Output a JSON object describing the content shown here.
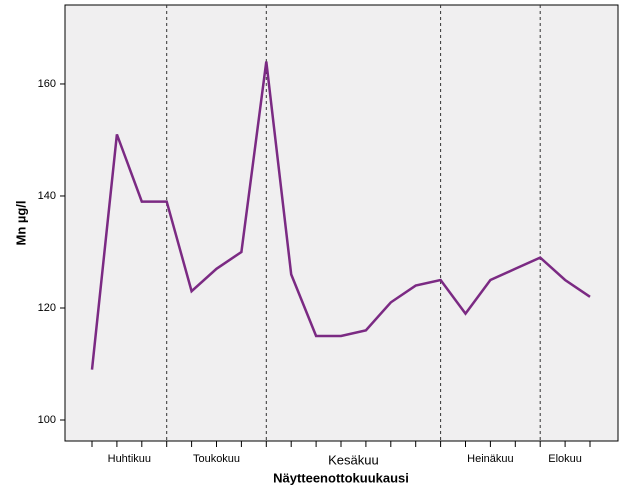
{
  "chart_data": {
    "type": "line",
    "x_label": "Näytteenottokuukausi",
    "y_label": "Mn µg/l",
    "values": [
      109,
      151,
      139,
      139,
      123,
      127,
      130,
      164,
      126,
      115,
      115,
      116,
      121,
      124,
      125,
      119,
      125,
      127,
      129,
      125,
      122
    ],
    "color": "#7b2a83",
    "month_labels": [
      "Huhtikuu",
      "Toukokuu",
      "Kesäkuu",
      "Heinäkuu",
      "Elokuu"
    ],
    "dividers": [
      3,
      7,
      14,
      18
    ],
    "ylim": [
      96.25,
      174.1
    ],
    "yticks": [
      100,
      120,
      140,
      160
    ],
    "grid": false
  }
}
